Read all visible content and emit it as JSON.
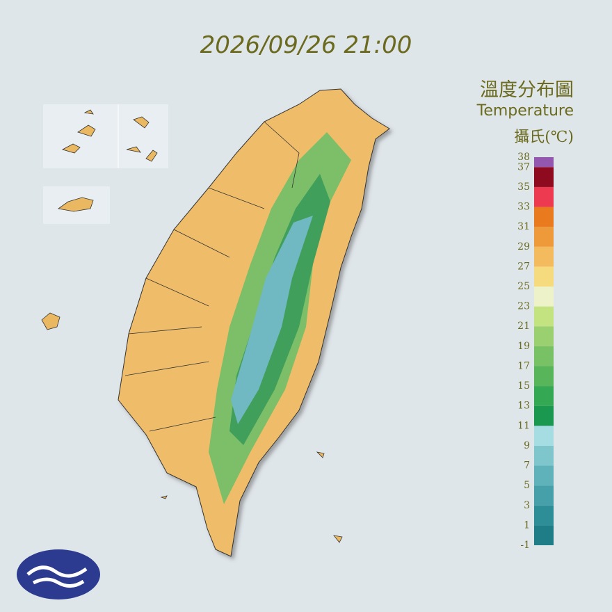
{
  "timestamp": "2026/09/26 21:00",
  "title": "溫度分布圖",
  "subtitle": "Temperature",
  "unit": "攝氏(℃)",
  "legend": {
    "levels": [
      -1,
      1,
      3,
      5,
      7,
      9,
      11,
      13,
      15,
      17,
      19,
      21,
      23,
      25,
      27,
      29,
      31,
      33,
      35,
      37,
      38
    ],
    "colors": [
      "#1f7d87",
      "#2e8e98",
      "#45a0aa",
      "#5fb2ba",
      "#7fc6cc",
      "#a6dde2",
      "#1a9850",
      "#34a853",
      "#58b55a",
      "#78c265",
      "#9bd071",
      "#c3e280",
      "#eef2c8",
      "#f6da7e",
      "#f4bb5e",
      "#ef9a3a",
      "#ea7a1e",
      "#ee3a50",
      "#8e0a1e",
      "#9457b0"
    ]
  }
}
